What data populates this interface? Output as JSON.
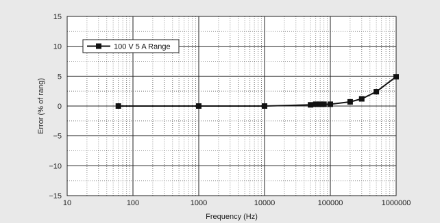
{
  "chart_data": {
    "type": "line",
    "title": "",
    "xlabel": "Frequency (Hz)",
    "ylabel": "Error (% of rang)",
    "xscale": "log",
    "xlim": [
      10,
      1000000
    ],
    "ylim": [
      -15,
      15
    ],
    "x_ticks": [
      "10",
      "100",
      "1000",
      "10000",
      "100000",
      "1000000"
    ],
    "y_ticks": [
      "15",
      "10",
      "5",
      "0",
      "−5",
      "−10",
      "−15"
    ],
    "grid": true,
    "legend_position": "top-left",
    "series": [
      {
        "name": "100 V 5 A Range",
        "color": "#111111",
        "marker": "square",
        "points": [
          {
            "x": 60,
            "y": 0.0
          },
          {
            "x": 1000,
            "y": 0.0
          },
          {
            "x": 10000,
            "y": 0.0
          },
          {
            "x": 50000,
            "y": 0.2
          },
          {
            "x": 60000,
            "y": 0.3
          },
          {
            "x": 70000,
            "y": 0.3
          },
          {
            "x": 80000,
            "y": 0.3
          },
          {
            "x": 100000,
            "y": 0.3
          },
          {
            "x": 200000,
            "y": 0.7
          },
          {
            "x": 300000,
            "y": 1.2
          },
          {
            "x": 500000,
            "y": 2.4
          },
          {
            "x": 1000000,
            "y": 4.9
          }
        ]
      }
    ]
  }
}
